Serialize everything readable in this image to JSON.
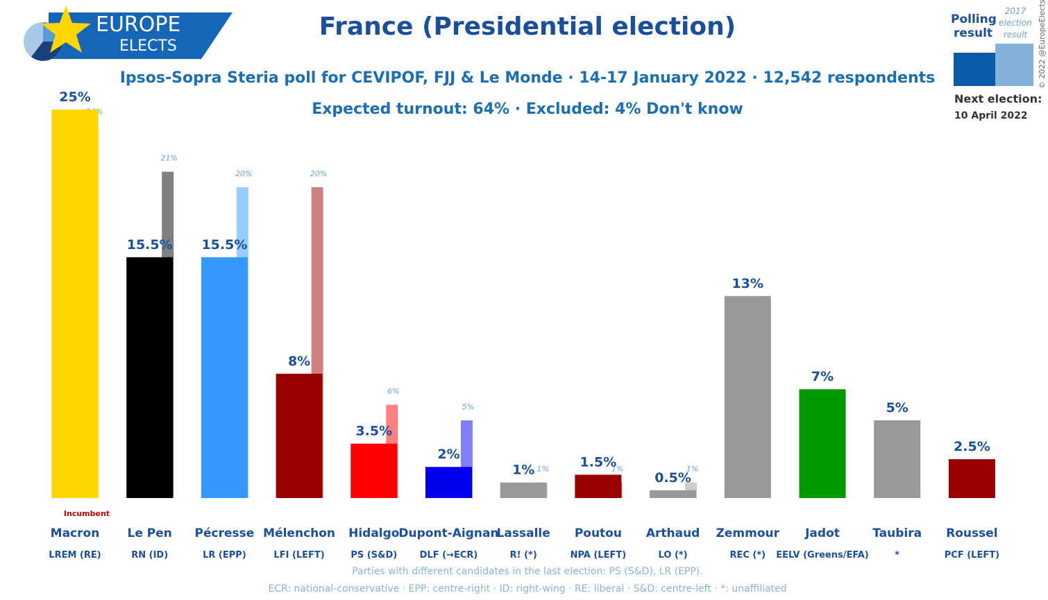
{
  "header": {
    "brand_main": "EUROPE",
    "brand_sub": "ELECTS",
    "title": "France (Presidential election)",
    "subtitle_line1": "Ipsos-Sopra Steria poll for CEVIPOF, FJJ & Le Monde · 14-17 January 2022 · 12,542 respondents",
    "subtitle_line2": "Expected turnout: 64% · Excluded: 4% Don't know"
  },
  "legend": {
    "current_label_line1": "Polling",
    "current_label_line2": "result",
    "previous_label_line1": "2017",
    "previous_label_line2": "election",
    "previous_label_line3": "result",
    "next_election_label": "Next election:",
    "next_election_date": "10 April 2022",
    "copyright": "© 2022 @EuropeElects"
  },
  "footer": {
    "line1": "Parties with different candidates in the last election: PS (S&D), LR (EPP).",
    "line2": "ECR: national-conservative · EPP: centre-right · ID: right-wing · RE: liberal · S&D: centre-left · *: unaffiliated"
  },
  "colors": {
    "brand_dark": "#1a4f9c",
    "brand_blue": "#1565b8",
    "brand_yellow": "#ffd700",
    "label_blue": "#1a4f9c",
    "footer_blue": "#8ab4d6"
  },
  "chart_data": {
    "type": "bar",
    "title": "France (Presidential election)",
    "ylim": [
      0,
      25
    ],
    "unit": "%",
    "series": [
      {
        "name": "Polling result",
        "values": [
          25,
          15.5,
          15.5,
          8,
          3.5,
          2,
          1,
          1.5,
          0.5,
          13,
          7,
          5,
          2.5
        ]
      },
      {
        "name": "2017 election result",
        "values": [
          24,
          21,
          20,
          20,
          6,
          5,
          1,
          1,
          1,
          null,
          null,
          null,
          null
        ]
      }
    ],
    "categories": [
      "Macron",
      "Le Pen",
      "Pécresse",
      "Mélenchon",
      "Hidalgo",
      "Dupont-Aignan",
      "Lassalle",
      "Poutou",
      "Arthaud",
      "Zemmour",
      "Jadot",
      "Taubira",
      "Roussel"
    ],
    "parties": [
      "LREM (RE)",
      "RN (ID)",
      "LR (EPP)",
      "LFI (LEFT)",
      "PS (S&D)",
      "DLF (→ECR)",
      "R! (*)",
      "NPA (LEFT)",
      "LO (*)",
      "REC (*)",
      "EELV (Greens/EFA)",
      "*",
      "PCF (LEFT)"
    ],
    "value_labels": [
      "25%",
      "15.5%",
      "15.5%",
      "8%",
      "3.5%",
      "2%",
      "1%",
      "1.5%",
      "0.5%",
      "13%",
      "7%",
      "5%",
      "2.5%"
    ],
    "prev_labels": [
      "24%",
      "21%",
      "20%",
      "20%",
      "6%",
      "5%",
      "1%",
      "1%",
      "1%",
      null,
      null,
      null,
      null
    ],
    "bar_colors": [
      "#ffd700",
      "#000000",
      "#3399ff",
      "#990000",
      "#ff0000",
      "#0000ee",
      "#999999",
      "#990000",
      "#999999",
      "#999999",
      "#009900",
      "#999999",
      "#990000"
    ],
    "prev_colors": [
      "#ffec80",
      "#808080",
      "#99ccff",
      "#cc8080",
      "#ff8080",
      "#8080ff",
      "#cccccc",
      "#cc8080",
      "#cccccc",
      null,
      null,
      null,
      null
    ],
    "annotations": [
      {
        "candidate": "Macron",
        "text": "Incumbent",
        "color": "#cc0000"
      }
    ]
  }
}
